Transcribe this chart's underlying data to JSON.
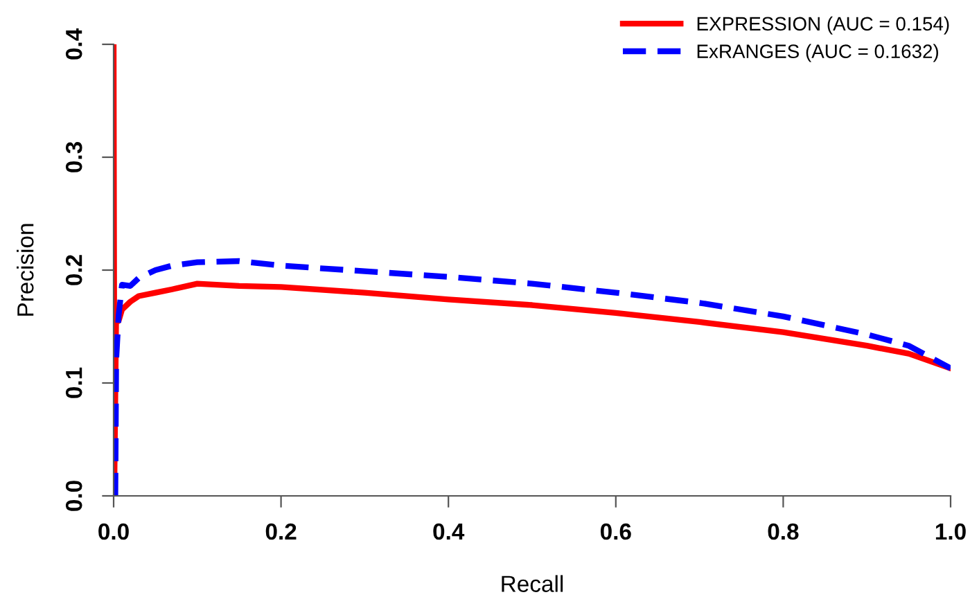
{
  "chart_data": {
    "type": "line",
    "xlabel": "Recall",
    "ylabel": "Precision",
    "xlim": [
      0,
      1
    ],
    "ylim": [
      0,
      0.4
    ],
    "xticks": [
      {
        "value": 0,
        "label": "0.0"
      },
      0.2,
      0.4,
      0.6,
      0.8,
      {
        "value": 1,
        "label": "1.0"
      }
    ],
    "yticks": [
      {
        "value": 0,
        "label": "0.0"
      },
      0.1,
      0.2,
      0.3,
      0.4
    ],
    "legend": "top right",
    "grid": false,
    "series": [
      {
        "name": "EXPRESSION (AUC = 0.154)",
        "color": "#ff0000",
        "line_style": "solid",
        "x": [
          0,
          0.001,
          0.003,
          0.006,
          0.01,
          0.02,
          0.03,
          0.05,
          0.07,
          0.1,
          0.15,
          0.2,
          0.3,
          0.4,
          0.5,
          0.6,
          0.7,
          0.8,
          0.9,
          0.95,
          1.0
        ],
        "values": [
          0.4,
          0.02,
          0.16,
          0.155,
          0.165,
          0.172,
          0.177,
          0.18,
          0.183,
          0.188,
          0.186,
          0.185,
          0.18,
          0.174,
          0.169,
          0.162,
          0.154,
          0.145,
          0.133,
          0.126,
          0.113
        ]
      },
      {
        "name": "ExRANGES (AUC = 0.1632)",
        "color": "#0000ff",
        "line_style": "dashed",
        "x": [
          0.002,
          0.003,
          0.006,
          0.01,
          0.02,
          0.03,
          0.05,
          0.07,
          0.1,
          0.15,
          0.2,
          0.3,
          0.4,
          0.5,
          0.6,
          0.7,
          0.8,
          0.9,
          0.95,
          1.0
        ],
        "values": [
          0,
          0.12,
          0.16,
          0.187,
          0.186,
          0.193,
          0.2,
          0.204,
          0.207,
          0.208,
          0.204,
          0.199,
          0.194,
          0.188,
          0.18,
          0.171,
          0.159,
          0.143,
          0.133,
          0.113
        ]
      }
    ]
  }
}
